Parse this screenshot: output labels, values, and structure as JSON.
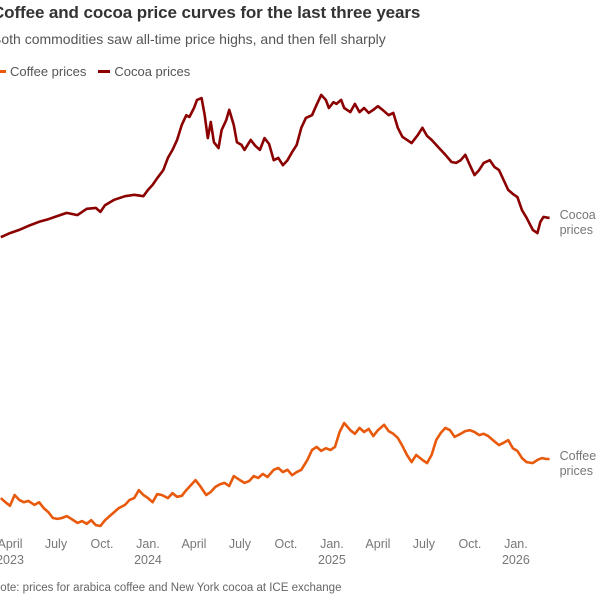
{
  "header": {
    "title": "Coffee and cocoa price curves for the last three years",
    "subtitle": "Both commodities saw all-time price highs, and then fell sharply"
  },
  "footer": {
    "note": "Note: prices for arabica coffee and New York cocoa at ICE exchange"
  },
  "chart_data": {
    "type": "line",
    "title": "Coffee and cocoa price curves for the last three years",
    "subtitle": "Both commodities saw all-time price highs, and then fell sharply",
    "xlabel": "",
    "ylabel": "",
    "y_axis_shown": false,
    "y_units": "relative index (no axis shown)",
    "ylim": [
      0,
      100
    ],
    "xlim": [
      -0.2,
      36.5
    ],
    "x_units": "months since Apr 2023",
    "grid": false,
    "legend": {
      "placement": "top-left",
      "entries": [
        {
          "name": "Coffee prices",
          "color": "#e8590c"
        },
        {
          "name": "Cocoa prices",
          "color": "#8b0000"
        }
      ]
    },
    "x_ticks": [
      {
        "pos": 0,
        "label": "April",
        "sublabel": "2023"
      },
      {
        "pos": 3,
        "label": "July",
        "sublabel": ""
      },
      {
        "pos": 6,
        "label": "Oct.",
        "sublabel": ""
      },
      {
        "pos": 9,
        "label": "Jan.",
        "sublabel": "2024"
      },
      {
        "pos": 12,
        "label": "April",
        "sublabel": ""
      },
      {
        "pos": 15,
        "label": "July",
        "sublabel": ""
      },
      {
        "pos": 18,
        "label": "Oct.",
        "sublabel": ""
      },
      {
        "pos": 21,
        "label": "Jan.",
        "sublabel": "2025"
      },
      {
        "pos": 24,
        "label": "April",
        "sublabel": ""
      },
      {
        "pos": 27,
        "label": "July",
        "sublabel": ""
      },
      {
        "pos": 30,
        "label": "Oct.",
        "sublabel": ""
      },
      {
        "pos": 33,
        "label": "Jan.",
        "sublabel": "2026"
      }
    ],
    "series": [
      {
        "name": "Cocoa prices",
        "end_label": [
          "Cocoa",
          "prices"
        ],
        "color": "#8b0000",
        "x": [
          -0.6,
          0.0,
          0.6,
          1.2,
          1.9,
          2.5,
          3.1,
          3.7,
          4.4,
          5.0,
          5.6,
          5.9,
          6.2,
          6.8,
          7.5,
          8.1,
          8.7,
          9.0,
          9.3,
          9.6,
          10.0,
          10.3,
          10.6,
          10.9,
          11.2,
          11.5,
          11.7,
          12.0,
          12.2,
          12.5,
          12.7,
          12.9,
          13.1,
          13.3,
          13.6,
          13.8,
          14.1,
          14.3,
          14.6,
          14.8,
          15.1,
          15.3,
          15.7,
          16.0,
          16.3,
          16.6,
          16.9,
          17.2,
          17.5,
          17.8,
          18.1,
          18.4,
          18.7,
          19.0,
          19.3,
          19.7,
          20.0,
          20.3,
          20.6,
          20.8,
          21.1,
          21.3,
          21.6,
          21.8,
          22.2,
          22.5,
          22.8,
          23.1,
          23.4,
          23.7,
          24.0,
          24.3,
          24.7,
          25.0,
          25.3,
          25.6,
          25.9,
          26.2,
          26.6,
          26.9,
          27.2,
          27.5,
          27.8,
          28.1,
          28.4,
          28.8,
          29.1,
          29.4,
          29.7,
          30.0,
          30.3,
          30.6,
          30.9,
          31.3,
          31.6,
          31.9,
          32.2,
          32.5,
          32.8,
          33.1,
          33.4,
          33.7,
          34.1,
          34.4,
          34.6,
          34.8,
          35.1,
          35.2
        ],
        "values": [
          67.3,
          68.2,
          68.9,
          69.8,
          70.7,
          71.3,
          72.0,
          72.7,
          72.2,
          73.6,
          73.8,
          72.9,
          74.4,
          75.6,
          76.4,
          76.7,
          76.4,
          77.8,
          78.9,
          80.4,
          82.2,
          84.9,
          86.7,
          88.9,
          92.2,
          94.4,
          94.0,
          96.0,
          97.8,
          98.2,
          94.4,
          89.3,
          92.9,
          88.4,
          87.1,
          91.1,
          93.3,
          95.6,
          92.2,
          88.4,
          87.8,
          86.7,
          88.9,
          87.6,
          86.7,
          89.3,
          88.0,
          84.4,
          84.9,
          83.3,
          84.4,
          86.2,
          87.8,
          91.6,
          93.8,
          94.4,
          96.7,
          98.9,
          97.8,
          96.0,
          97.3,
          96.9,
          97.8,
          96.0,
          95.1,
          96.9,
          95.1,
          96.0,
          94.9,
          95.6,
          96.4,
          95.6,
          94.4,
          94.9,
          91.6,
          89.6,
          88.9,
          88.2,
          90.0,
          91.6,
          89.8,
          88.9,
          87.8,
          86.7,
          85.6,
          84.0,
          83.8,
          84.4,
          85.6,
          83.3,
          81.1,
          82.2,
          83.8,
          84.4,
          82.9,
          82.2,
          80.0,
          77.8,
          76.9,
          76.2,
          73.3,
          71.6,
          68.9,
          68.2,
          70.7,
          71.8,
          71.6,
          71.6
        ]
      },
      {
        "name": "Coffee prices",
        "end_label": [
          "Coffee",
          "prices"
        ],
        "color": "#e8590c",
        "x": [
          -0.6,
          -0.3,
          0.0,
          0.3,
          0.6,
          0.9,
          1.2,
          1.6,
          1.9,
          2.2,
          2.5,
          2.8,
          3.1,
          3.4,
          3.7,
          4.0,
          4.4,
          4.7,
          5.0,
          5.3,
          5.6,
          5.9,
          6.2,
          6.5,
          6.8,
          7.1,
          7.5,
          7.8,
          8.1,
          8.4,
          8.7,
          9.0,
          9.3,
          9.6,
          9.9,
          10.3,
          10.6,
          10.9,
          11.2,
          11.5,
          11.8,
          12.1,
          12.4,
          12.8,
          13.1,
          13.4,
          13.7,
          14.0,
          14.3,
          14.6,
          15.0,
          15.3,
          15.6,
          15.9,
          16.2,
          16.5,
          16.8,
          17.2,
          17.5,
          17.8,
          18.1,
          18.4,
          18.7,
          19.0,
          19.4,
          19.7,
          20.0,
          20.3,
          20.6,
          20.9,
          21.2,
          21.5,
          21.8,
          22.2,
          22.5,
          22.8,
          23.1,
          23.4,
          23.7,
          24.0,
          24.4,
          24.7,
          25.0,
          25.3,
          25.6,
          25.9,
          26.2,
          26.5,
          26.9,
          27.2,
          27.5,
          27.8,
          28.1,
          28.4,
          28.7,
          29.0,
          29.4,
          29.7,
          30.0,
          30.3,
          30.6,
          30.9,
          31.2,
          31.5,
          31.9,
          32.2,
          32.5,
          32.8,
          33.1,
          33.4,
          33.7,
          34.1,
          34.4,
          34.7,
          35.0,
          35.2
        ],
        "values": [
          9.3,
          8.4,
          7.6,
          10.0,
          8.9,
          8.4,
          8.7,
          7.8,
          8.4,
          7.1,
          6.2,
          4.9,
          4.7,
          4.9,
          5.3,
          4.7,
          3.8,
          4.2,
          3.6,
          4.4,
          3.3,
          3.1,
          4.4,
          5.3,
          6.2,
          7.1,
          7.8,
          8.9,
          9.3,
          11.1,
          10.0,
          9.3,
          8.4,
          10.2,
          10.0,
          9.3,
          10.4,
          9.6,
          9.8,
          11.1,
          12.2,
          13.3,
          12.0,
          10.0,
          10.7,
          11.8,
          12.4,
          12.7,
          12.0,
          14.2,
          13.3,
          12.7,
          13.1,
          14.2,
          13.8,
          14.7,
          14.0,
          15.6,
          16.0,
          15.1,
          15.6,
          14.4,
          15.1,
          15.6,
          17.8,
          20.0,
          20.7,
          19.8,
          20.4,
          20.0,
          20.7,
          24.0,
          26.0,
          24.4,
          23.6,
          24.9,
          24.0,
          24.7,
          23.1,
          24.4,
          25.6,
          24.2,
          23.6,
          22.7,
          20.9,
          18.9,
          17.3,
          18.9,
          17.8,
          17.1,
          18.9,
          22.2,
          23.8,
          24.9,
          24.4,
          22.9,
          23.6,
          24.2,
          24.4,
          24.0,
          23.3,
          23.6,
          23.1,
          22.2,
          21.1,
          21.6,
          22.2,
          20.4,
          19.8,
          18.2,
          17.3,
          17.1,
          17.8,
          18.2,
          18.0,
          18.0
        ]
      }
    ]
  }
}
